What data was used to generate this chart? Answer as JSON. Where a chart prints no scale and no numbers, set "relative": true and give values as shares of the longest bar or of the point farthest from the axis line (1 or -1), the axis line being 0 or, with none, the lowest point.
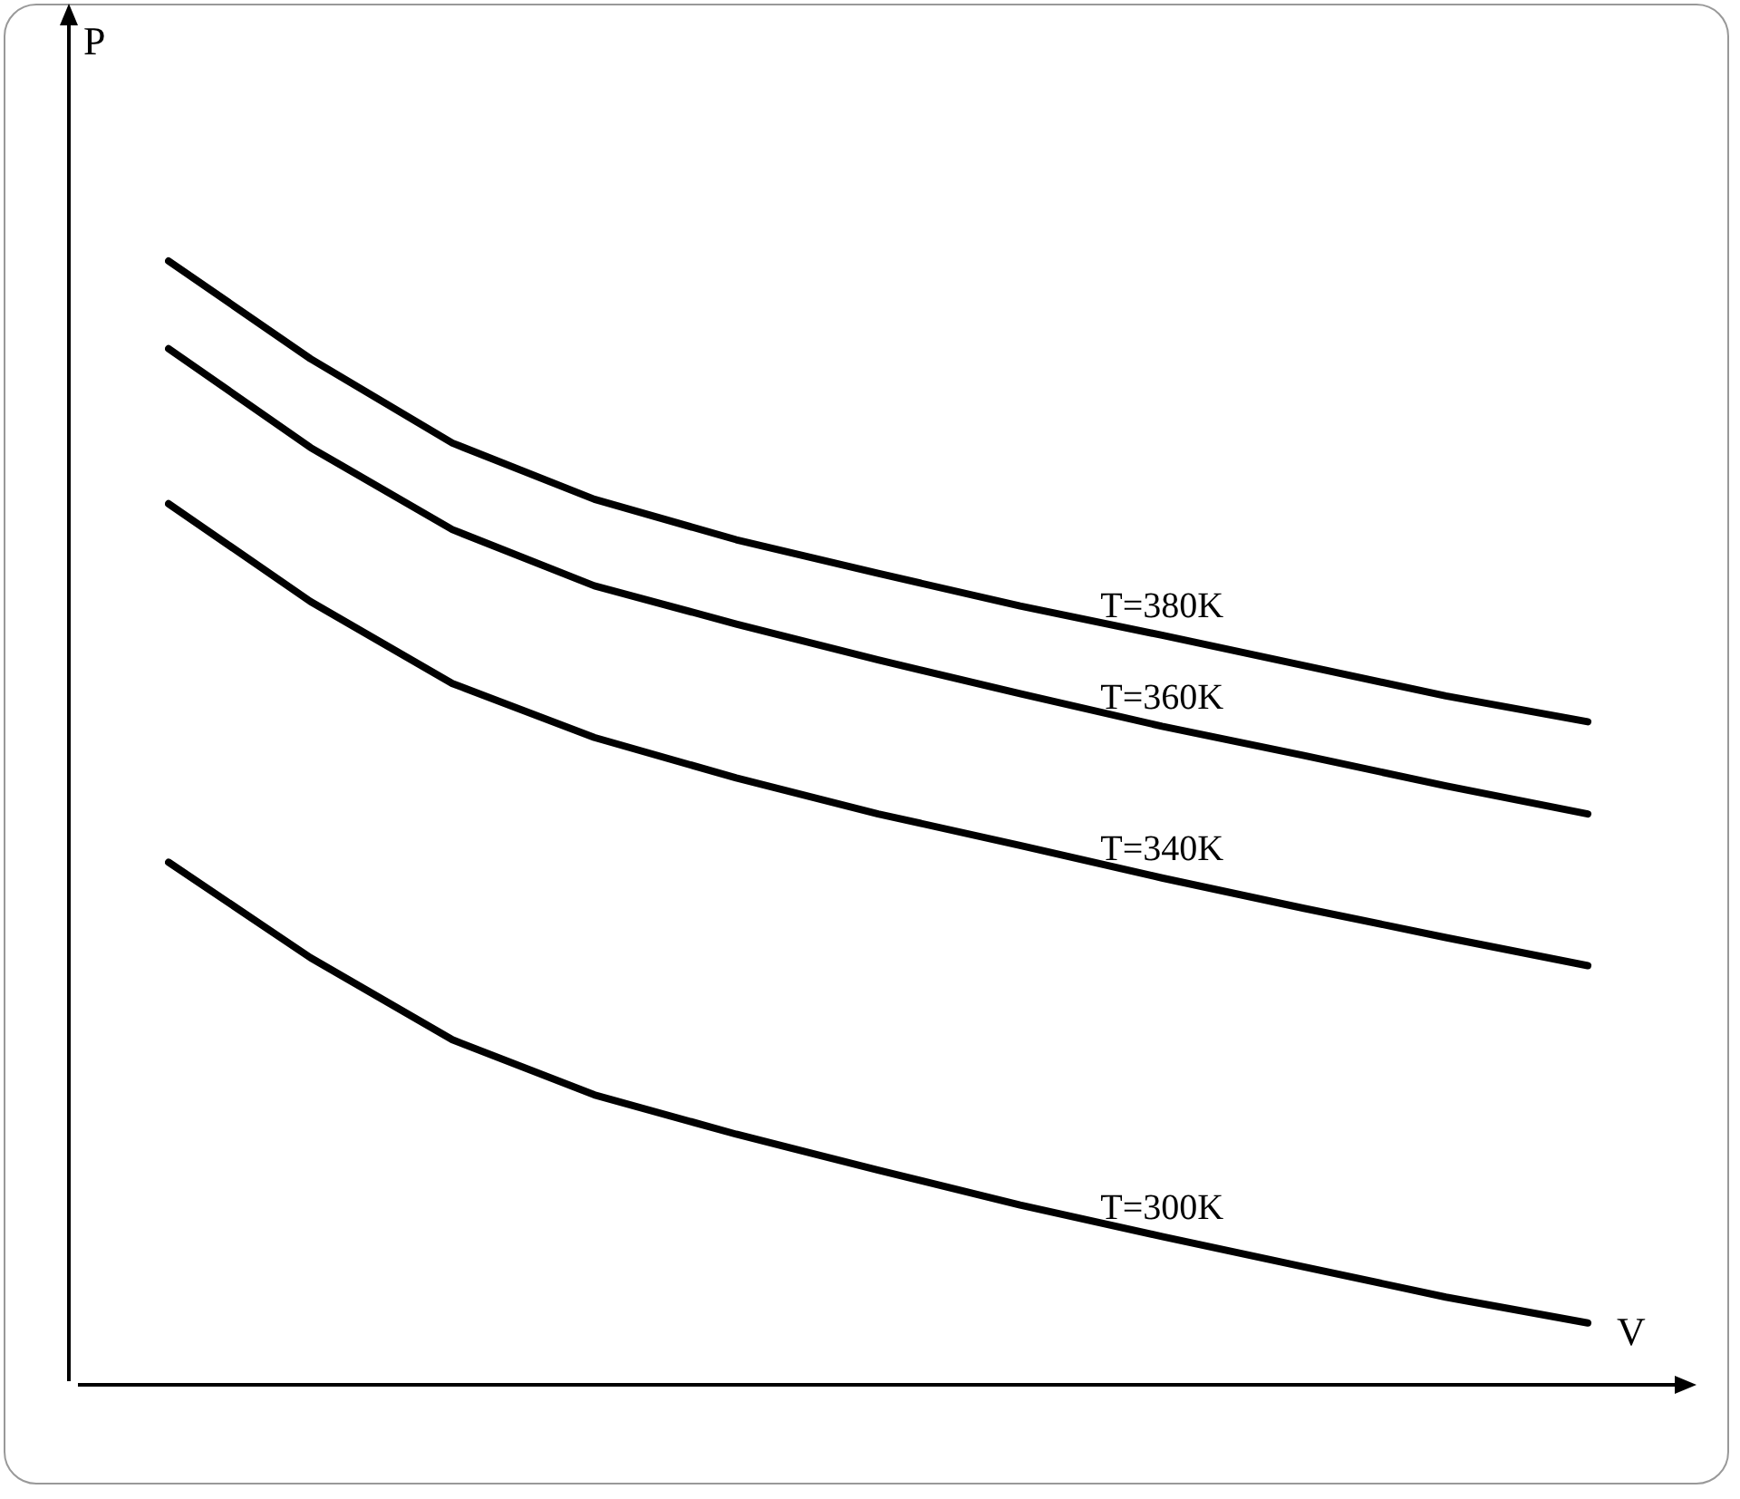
{
  "chart_data": {
    "type": "line",
    "relative": true,
    "xlabel": "V",
    "ylabel": "P",
    "legend": false,
    "grid": false,
    "marker": "none",
    "line_style": "solid",
    "categories": [
      null,
      null,
      null,
      null,
      null,
      null,
      null,
      null,
      null,
      null,
      null
    ],
    "series": [
      {
        "name": "T=380K",
        "color": "#000000",
        "values": [
          1.0,
          0.913,
          0.838,
          0.788,
          0.752,
          0.722,
          0.693,
          0.667,
          0.64,
          0.613,
          0.59
        ]
      },
      {
        "name": "T=360K",
        "color": "#000000",
        "values": [
          0.922,
          0.834,
          0.761,
          0.711,
          0.677,
          0.645,
          0.615,
          0.586,
          0.56,
          0.533,
          0.508
        ]
      },
      {
        "name": "T=340K",
        "color": "#000000",
        "values": [
          0.784,
          0.697,
          0.624,
          0.576,
          0.54,
          0.508,
          0.48,
          0.451,
          0.424,
          0.398,
          0.373
        ]
      },
      {
        "name": "T=300K",
        "color": "#000000",
        "values": [
          0.465,
          0.38,
          0.307,
          0.258,
          0.223,
          0.191,
          0.16,
          0.132,
          0.105,
          0.078,
          0.055
        ]
      }
    ]
  }
}
